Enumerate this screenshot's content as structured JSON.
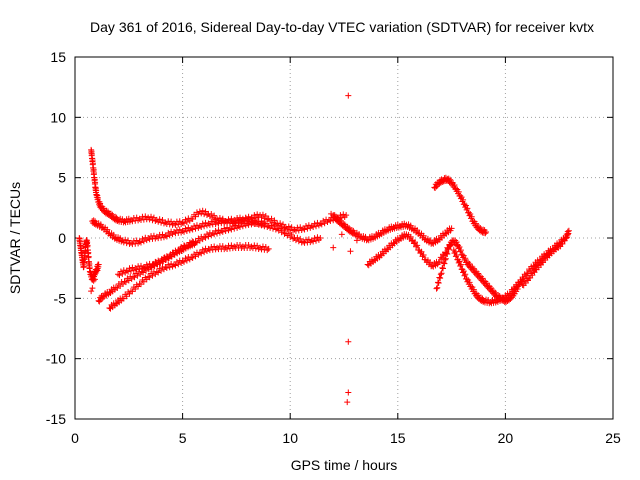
{
  "chart_data": {
    "type": "scatter",
    "title": "Day 361 of 2016, Sidereal Day-to-day VTEC variation (SDTVAR) for receiver kvtx",
    "xlabel": "GPS time / hours",
    "ylabel": "SDTVAR / TECUs",
    "xlim": [
      0,
      25
    ],
    "ylim": [
      -15,
      15
    ],
    "xticks": [
      0,
      5,
      10,
      15,
      20,
      25
    ],
    "yticks": [
      -15,
      -10,
      -5,
      0,
      5,
      10,
      15
    ],
    "x_tick_labels": [
      "0",
      "5",
      "10",
      "15",
      "20",
      "25"
    ],
    "y_tick_labels": [
      "-15",
      "-10",
      "-5",
      "0",
      "5",
      "10",
      "15"
    ],
    "grid": true,
    "marker": "+",
    "series": [
      {
        "name": "upper-arc",
        "color": "#ff0000",
        "points": [
          [
            0.75,
            7.3
          ],
          [
            0.8,
            6.6
          ],
          [
            0.85,
            5.8
          ],
          [
            0.9,
            5.0
          ],
          [
            0.95,
            4.2
          ],
          [
            1.0,
            3.6
          ],
          [
            1.1,
            3.0
          ],
          [
            1.2,
            2.6
          ],
          [
            1.4,
            2.2
          ],
          [
            1.6,
            2.0
          ],
          [
            1.8,
            1.7
          ],
          [
            2.0,
            1.5
          ],
          [
            2.3,
            1.4
          ],
          [
            2.6,
            1.5
          ],
          [
            3.0,
            1.6
          ],
          [
            3.4,
            1.7
          ],
          [
            3.8,
            1.5
          ],
          [
            4.2,
            1.3
          ],
          [
            4.6,
            1.2
          ],
          [
            5.0,
            1.3
          ],
          [
            5.4,
            1.6
          ],
          [
            5.8,
            2.2
          ],
          [
            6.2,
            2.0
          ],
          [
            6.6,
            1.6
          ],
          [
            7.0,
            1.4
          ],
          [
            7.4,
            1.3
          ],
          [
            7.8,
            1.5
          ],
          [
            8.2,
            1.7
          ],
          [
            8.6,
            1.9
          ],
          [
            9.0,
            1.6
          ],
          [
            9.4,
            1.2
          ],
          [
            9.8,
            0.9
          ],
          [
            10.2,
            0.7
          ],
          [
            10.6,
            0.8
          ],
          [
            11.0,
            1.0
          ],
          [
            11.4,
            1.2
          ],
          [
            11.8,
            1.5
          ],
          [
            12.2,
            1.7
          ],
          [
            12.6,
            1.9
          ]
        ]
      },
      {
        "name": "middle-arc",
        "color": "#ff0000",
        "points": [
          [
            0.8,
            1.4
          ],
          [
            1.0,
            1.2
          ],
          [
            1.3,
            0.9
          ],
          [
            1.6,
            0.4
          ],
          [
            1.9,
            0.0
          ],
          [
            2.2,
            -0.2
          ],
          [
            2.6,
            -0.4
          ],
          [
            3.0,
            -0.3
          ],
          [
            3.4,
            0.0
          ],
          [
            3.8,
            0.1
          ],
          [
            4.2,
            0.2
          ],
          [
            4.6,
            0.5
          ],
          [
            5.0,
            0.6
          ],
          [
            5.4,
            0.8
          ],
          [
            5.8,
            1.0
          ],
          [
            6.2,
            1.2
          ],
          [
            6.6,
            1.3
          ],
          [
            7.0,
            1.4
          ],
          [
            7.4,
            1.5
          ],
          [
            7.8,
            1.6
          ],
          [
            8.2,
            1.4
          ],
          [
            8.6,
            1.2
          ],
          [
            9.0,
            1.0
          ],
          [
            9.4,
            0.8
          ],
          [
            9.8,
            0.4
          ],
          [
            10.2,
            0.0
          ],
          [
            10.6,
            -0.3
          ],
          [
            11.0,
            -0.2
          ],
          [
            11.4,
            0.0
          ]
        ]
      },
      {
        "name": "lower-rising-arc",
        "color": "#ff0000",
        "points": [
          [
            1.1,
            -5.2
          ],
          [
            1.3,
            -4.8
          ],
          [
            1.6,
            -4.5
          ],
          [
            1.9,
            -4.1
          ],
          [
            2.3,
            -3.6
          ],
          [
            2.7,
            -3.2
          ],
          [
            3.1,
            -2.8
          ],
          [
            3.5,
            -2.4
          ],
          [
            3.9,
            -2.0
          ],
          [
            4.3,
            -1.6
          ],
          [
            4.7,
            -1.2
          ],
          [
            5.0,
            -0.9
          ],
          [
            5.3,
            -0.6
          ],
          [
            5.6,
            -0.4
          ]
        ]
      },
      {
        "name": "lower-arc-b",
        "color": "#ff0000",
        "points": [
          [
            1.6,
            -5.8
          ],
          [
            1.9,
            -5.4
          ],
          [
            2.2,
            -5.0
          ],
          [
            2.6,
            -4.4
          ],
          [
            3.0,
            -3.8
          ],
          [
            3.4,
            -3.2
          ],
          [
            3.8,
            -2.8
          ],
          [
            4.2,
            -2.4
          ],
          [
            4.6,
            -2.2
          ],
          [
            5.0,
            -1.9
          ],
          [
            5.4,
            -1.6
          ],
          [
            5.8,
            -1.2
          ],
          [
            6.2,
            -0.9
          ],
          [
            6.6,
            -0.8
          ],
          [
            7.0,
            -0.8
          ],
          [
            7.4,
            -0.7
          ],
          [
            7.8,
            -0.7
          ],
          [
            8.2,
            -0.7
          ],
          [
            8.6,
            -0.8
          ],
          [
            9.0,
            -0.9
          ]
        ]
      },
      {
        "name": "lower-arc-c",
        "color": "#ff0000",
        "points": [
          [
            2.0,
            -3.0
          ],
          [
            2.4,
            -2.7
          ],
          [
            2.8,
            -2.5
          ],
          [
            3.2,
            -2.4
          ],
          [
            3.6,
            -2.2
          ],
          [
            4.0,
            -1.9
          ],
          [
            4.4,
            -1.5
          ],
          [
            4.8,
            -1.0
          ],
          [
            5.2,
            -0.6
          ],
          [
            5.6,
            -0.3
          ],
          [
            6.0,
            0.1
          ],
          [
            6.4,
            0.4
          ],
          [
            6.8,
            0.6
          ],
          [
            7.2,
            0.8
          ],
          [
            7.6,
            1.0
          ],
          [
            8.0,
            1.2
          ],
          [
            8.4,
            1.3
          ],
          [
            8.8,
            1.2
          ]
        ]
      },
      {
        "name": "early-cluster",
        "color": "#ff0000",
        "points": [
          [
            0.2,
            0.0
          ],
          [
            0.25,
            -0.6
          ],
          [
            0.3,
            -1.2
          ],
          [
            0.35,
            -1.8
          ],
          [
            0.4,
            -2.4
          ],
          [
            0.45,
            -1.5
          ],
          [
            0.5,
            -0.5
          ],
          [
            0.55,
            -0.2
          ],
          [
            0.6,
            -1.0
          ],
          [
            0.65,
            -2.0
          ],
          [
            0.7,
            -2.8
          ],
          [
            0.8,
            -3.4
          ],
          [
            0.9,
            -3.0
          ],
          [
            1.0,
            -2.6
          ],
          [
            1.1,
            -2.2
          ],
          [
            0.75,
            -4.4
          ]
        ]
      },
      {
        "name": "midnight-band",
        "color": "#ff0000",
        "points": [
          [
            12.0,
            1.9
          ],
          [
            12.2,
            1.5
          ],
          [
            12.4,
            1.2
          ],
          [
            12.6,
            0.9
          ],
          [
            12.8,
            0.6
          ],
          [
            13.0,
            0.4
          ],
          [
            13.3,
            0.1
          ],
          [
            13.6,
            -0.1
          ],
          [
            13.9,
            0.1
          ],
          [
            14.2,
            0.4
          ],
          [
            14.5,
            0.7
          ],
          [
            14.8,
            0.9
          ],
          [
            15.1,
            1.0
          ],
          [
            15.4,
            1.1
          ],
          [
            15.7,
            0.8
          ],
          [
            16.0,
            0.4
          ],
          [
            16.3,
            -0.1
          ],
          [
            16.6,
            -0.4
          ],
          [
            16.9,
            -0.1
          ],
          [
            17.2,
            0.4
          ],
          [
            17.5,
            0.8
          ]
        ]
      },
      {
        "name": "midnight-drop",
        "color": "#ff0000",
        "points": [
          [
            13.6,
            -2.2
          ],
          [
            13.9,
            -1.8
          ],
          [
            14.2,
            -1.4
          ],
          [
            14.5,
            -0.9
          ],
          [
            14.8,
            -0.4
          ],
          [
            15.1,
            0.0
          ],
          [
            15.4,
            0.3
          ],
          [
            15.7,
            -0.2
          ],
          [
            16.0,
            -1.0
          ],
          [
            16.3,
            -1.8
          ],
          [
            16.6,
            -2.3
          ],
          [
            16.9,
            -2.0
          ],
          [
            17.2,
            -1.2
          ],
          [
            17.5,
            -0.4
          ]
        ]
      },
      {
        "name": "bump-arc",
        "color": "#ff0000",
        "points": [
          [
            16.7,
            4.2
          ],
          [
            16.9,
            4.6
          ],
          [
            17.1,
            4.8
          ],
          [
            17.3,
            4.9
          ],
          [
            17.5,
            4.6
          ],
          [
            17.7,
            4.1
          ],
          [
            17.9,
            3.5
          ],
          [
            18.1,
            2.8
          ],
          [
            18.3,
            2.1
          ],
          [
            18.5,
            1.4
          ],
          [
            18.7,
            0.9
          ],
          [
            18.9,
            0.6
          ],
          [
            19.1,
            0.5
          ]
        ]
      },
      {
        "name": "afternoon-descent",
        "color": "#ff0000",
        "points": [
          [
            16.8,
            -4.2
          ],
          [
            17.0,
            -3.0
          ],
          [
            17.2,
            -1.8
          ],
          [
            17.4,
            -0.6
          ],
          [
            17.6,
            -0.2
          ],
          [
            17.8,
            -0.6
          ],
          [
            18.0,
            -1.4
          ],
          [
            18.2,
            -2.0
          ],
          [
            18.4,
            -2.4
          ],
          [
            18.6,
            -2.8
          ],
          [
            18.8,
            -3.2
          ],
          [
            19.0,
            -3.6
          ],
          [
            19.2,
            -4.0
          ],
          [
            19.4,
            -4.4
          ],
          [
            19.6,
            -4.8
          ],
          [
            19.8,
            -5.0
          ],
          [
            20.0,
            -5.2
          ],
          [
            20.2,
            -5.0
          ],
          [
            20.4,
            -4.6
          ],
          [
            20.6,
            -4.0
          ]
        ]
      },
      {
        "name": "afternoon-descent-b",
        "color": "#ff0000",
        "points": [
          [
            17.6,
            -1.0
          ],
          [
            17.8,
            -1.8
          ],
          [
            18.0,
            -2.6
          ],
          [
            18.2,
            -3.4
          ],
          [
            18.4,
            -4.0
          ],
          [
            18.6,
            -4.6
          ],
          [
            18.8,
            -5.0
          ],
          [
            19.0,
            -5.2
          ],
          [
            19.3,
            -5.3
          ],
          [
            19.6,
            -5.2
          ],
          [
            19.9,
            -5.0
          ],
          [
            20.2,
            -4.6
          ],
          [
            20.5,
            -4.0
          ],
          [
            20.8,
            -3.4
          ]
        ]
      },
      {
        "name": "evening-rise",
        "color": "#ff0000",
        "points": [
          [
            20.4,
            -4.2
          ],
          [
            20.7,
            -3.6
          ],
          [
            21.0,
            -2.9
          ],
          [
            21.3,
            -2.3
          ],
          [
            21.6,
            -1.8
          ],
          [
            21.9,
            -1.3
          ],
          [
            22.2,
            -0.9
          ],
          [
            22.5,
            -0.4
          ],
          [
            22.8,
            0.0
          ],
          [
            22.95,
            0.6
          ]
        ]
      },
      {
        "name": "evening-rise-b",
        "color": "#ff0000",
        "points": [
          [
            20.8,
            -3.9
          ],
          [
            21.1,
            -3.3
          ],
          [
            21.4,
            -2.6
          ],
          [
            21.7,
            -2.0
          ],
          [
            22.0,
            -1.4
          ],
          [
            22.3,
            -0.9
          ],
          [
            22.6,
            -0.5
          ],
          [
            22.9,
            0.3
          ]
        ]
      },
      {
        "name": "outliers",
        "color": "#ff0000",
        "points": [
          [
            12.7,
            11.8
          ],
          [
            12.7,
            -8.6
          ],
          [
            12.7,
            -12.8
          ],
          [
            12.65,
            -13.6
          ],
          [
            12.0,
            -0.8
          ],
          [
            12.8,
            -1.1
          ],
          [
            13.1,
            -0.2
          ],
          [
            11.9,
            2.0
          ],
          [
            12.4,
            0.3
          ]
        ]
      }
    ]
  }
}
